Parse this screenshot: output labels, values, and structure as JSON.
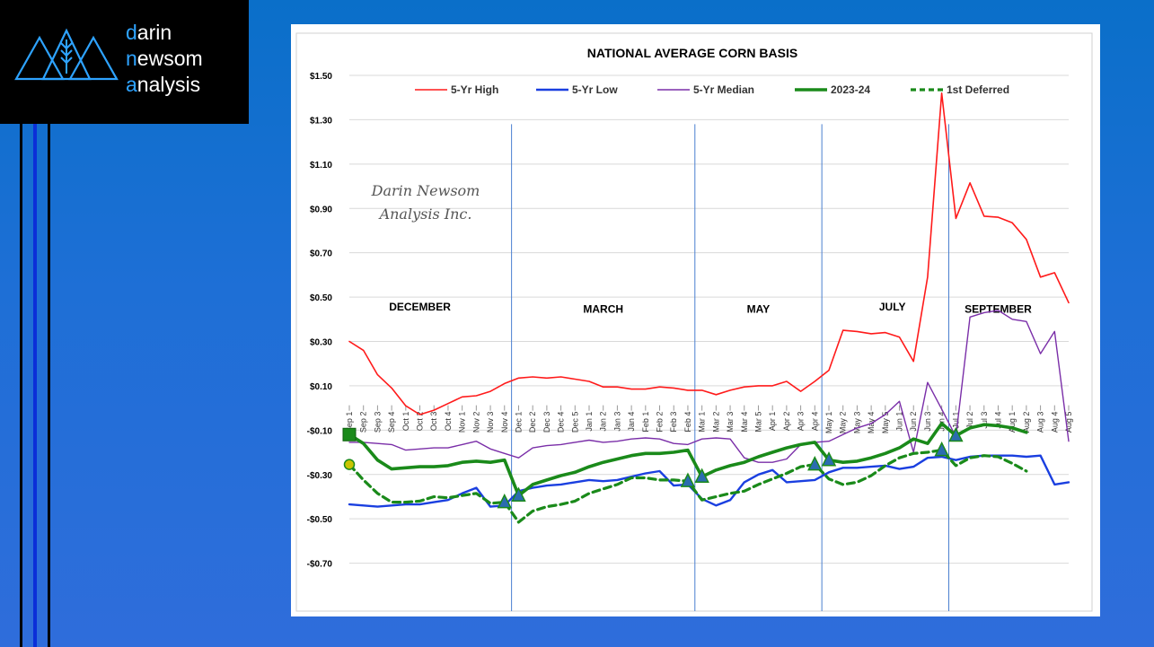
{
  "brand": {
    "line1_a": "d",
    "line1_b": "arin",
    "line2_a": "n",
    "line2_b": "ewsom",
    "line3_a": "a",
    "line3_b": "nalysis"
  },
  "watermark": {
    "line1": "Darin Newsom",
    "line2": "Analysis Inc."
  },
  "colors": {
    "high": "#ff1a1a",
    "low": "#1a3fe0",
    "median": "#7a2ea8",
    "current": "#1a8a1a",
    "deferred": "#1a8a1a",
    "marker_fill": "#2b6cb0"
  },
  "chart_data": {
    "type": "line",
    "title": "NATIONAL AVERAGE CORN BASIS",
    "ylim": [
      -0.9,
      1.5
    ],
    "yticks": [
      1.5,
      1.3,
      1.1,
      0.9,
      0.7,
      0.5,
      0.3,
      0.1,
      -0.1,
      -0.3,
      -0.5,
      -0.7
    ],
    "ytick_labels": [
      "$1.50",
      "$1.30",
      "$1.10",
      "$0.90",
      "$0.70",
      "$0.50",
      "$0.30",
      "$0.10",
      "-$0.10",
      "-$0.30",
      "-$0.50",
      "-$0.70"
    ],
    "grid": true,
    "legend_position": "top",
    "x": [
      "Sep 1",
      "Sep 2",
      "Sep 3",
      "Sep 4",
      "Oct 1",
      "Oct 2",
      "Oct 3",
      "Oct 4",
      "Nov 1",
      "Nov 2",
      "Nov 3",
      "Nov 4",
      "Dec 1",
      "Dec 2",
      "Dec 3",
      "Dec 4",
      "Dec 5",
      "Jan 1",
      "Jan 2",
      "Jan 3",
      "Jan 4",
      "Feb 1",
      "Feb 2",
      "Feb 3",
      "Feb 4",
      "Mar 1",
      "Mar 2",
      "Mar 3",
      "Mar 4",
      "Mar 5",
      "Apr 1",
      "Apr 2",
      "Apr 3",
      "Apr 4",
      "May 1",
      "May 2",
      "May 3",
      "May 4",
      "May 5",
      "Jun 1",
      "Jun 2",
      "Jun 3",
      "Jun 4",
      "Jul 1",
      "Jul 2",
      "Jul 3",
      "Jul 4",
      "Aug 1",
      "Aug 2",
      "Aug 3",
      "Aug 4",
      "Aug 5"
    ],
    "series": [
      {
        "name": "5-Yr High",
        "style": "thin",
        "values": [
          0.3,
          0.26,
          0.15,
          0.09,
          0.01,
          -0.03,
          -0.01,
          0.02,
          0.05,
          0.055,
          0.075,
          0.11,
          0.135,
          0.14,
          0.135,
          0.14,
          0.13,
          0.12,
          0.095,
          0.095,
          0.085,
          0.085,
          0.095,
          0.09,
          0.08,
          0.08,
          0.06,
          0.08,
          0.095,
          0.1,
          0.1,
          0.12,
          0.075,
          0.12,
          0.17,
          0.35,
          0.345,
          0.335,
          0.34,
          0.32,
          0.21,
          0.59,
          1.42,
          0.855,
          1.015,
          0.865,
          0.86,
          0.835,
          0.76,
          0.59,
          0.61,
          0.475
        ]
      },
      {
        "name": "5-Yr Low",
        "style": "medium",
        "values": [
          -0.435,
          -0.44,
          -0.445,
          -0.44,
          -0.435,
          -0.435,
          -0.425,
          -0.415,
          -0.385,
          -0.36,
          -0.445,
          -0.44,
          -0.375,
          -0.36,
          -0.35,
          -0.345,
          -0.335,
          -0.325,
          -0.33,
          -0.325,
          -0.31,
          -0.295,
          -0.285,
          -0.35,
          -0.345,
          -0.41,
          -0.44,
          -0.415,
          -0.335,
          -0.3,
          -0.28,
          -0.335,
          -0.33,
          -0.325,
          -0.29,
          -0.27,
          -0.27,
          -0.265,
          -0.26,
          -0.275,
          -0.265,
          -0.225,
          -0.22,
          -0.235,
          -0.22,
          -0.215,
          -0.215,
          -0.215,
          -0.22,
          -0.215,
          -0.345,
          -0.335
        ]
      },
      {
        "name": "5-Yr Median",
        "style": "thin",
        "values": [
          -0.155,
          -0.155,
          -0.16,
          -0.165,
          -0.19,
          -0.185,
          -0.18,
          -0.18,
          -0.165,
          -0.15,
          -0.185,
          -0.205,
          -0.225,
          -0.18,
          -0.17,
          -0.165,
          -0.155,
          -0.145,
          -0.155,
          -0.15,
          -0.14,
          -0.135,
          -0.14,
          -0.16,
          -0.165,
          -0.14,
          -0.135,
          -0.14,
          -0.225,
          -0.245,
          -0.245,
          -0.23,
          -0.165,
          -0.155,
          -0.15,
          -0.12,
          -0.09,
          -0.07,
          -0.03,
          0.03,
          -0.2,
          0.115,
          -0.005,
          -0.13,
          0.41,
          0.43,
          0.44,
          0.4,
          0.39,
          0.245,
          0.345,
          -0.15
        ]
      },
      {
        "name": "2023-24",
        "style": "thick",
        "values": [
          -0.12,
          -0.16,
          -0.235,
          -0.275,
          -0.27,
          -0.265,
          -0.265,
          -0.26,
          -0.245,
          -0.24,
          -0.245,
          -0.235,
          -0.395,
          -0.345,
          -0.325,
          -0.305,
          -0.29,
          -0.265,
          -0.245,
          -0.23,
          -0.215,
          -0.205,
          -0.205,
          -0.2,
          -0.19,
          -0.31,
          -0.28,
          -0.26,
          -0.245,
          -0.22,
          -0.2,
          -0.18,
          -0.165,
          -0.155,
          -0.235,
          -0.245,
          -0.24,
          -0.225,
          -0.205,
          -0.18,
          -0.14,
          -0.16,
          -0.07,
          -0.125,
          -0.09,
          -0.075,
          -0.08,
          -0.09,
          -0.11,
          null,
          null,
          null
        ]
      },
      {
        "name": "1st Deferred",
        "style": "dashed",
        "values": [
          -0.255,
          -0.325,
          -0.385,
          -0.425,
          -0.425,
          -0.42,
          -0.4,
          -0.405,
          -0.395,
          -0.385,
          -0.43,
          -0.425,
          -0.515,
          -0.465,
          -0.445,
          -0.435,
          -0.42,
          -0.385,
          -0.365,
          -0.345,
          -0.315,
          -0.315,
          -0.325,
          -0.325,
          -0.33,
          -0.415,
          -0.4,
          -0.385,
          -0.375,
          -0.345,
          -0.32,
          -0.295,
          -0.265,
          -0.255,
          -0.32,
          -0.345,
          -0.335,
          -0.305,
          -0.26,
          -0.225,
          -0.205,
          -0.2,
          -0.19,
          -0.26,
          -0.225,
          -0.215,
          -0.22,
          -0.25,
          -0.285,
          null,
          null,
          null
        ]
      }
    ],
    "contract_markers": [
      {
        "series": "2023-24",
        "shape": "square",
        "index": 0
      },
      {
        "series": "1st Deferred",
        "shape": "circle",
        "index": 0
      },
      {
        "series": "1st Deferred",
        "shape": "triangle",
        "index": 11
      },
      {
        "series": "2023-24",
        "shape": "triangle",
        "index": 12
      },
      {
        "series": "1st Deferred",
        "shape": "triangle",
        "index": 24
      },
      {
        "series": "2023-24",
        "shape": "triangle",
        "index": 25
      },
      {
        "series": "1st Deferred",
        "shape": "triangle",
        "index": 33
      },
      {
        "series": "2023-24",
        "shape": "triangle",
        "index": 34
      },
      {
        "series": "1st Deferred",
        "shape": "triangle",
        "index": 42
      },
      {
        "series": "2023-24",
        "shape": "triangle",
        "index": 43
      }
    ],
    "contract_dividers": [
      11.5,
      24.5,
      33.5,
      42.5
    ],
    "annotations": [
      {
        "text": "DECEMBER",
        "x_index": 5,
        "y": 0.44
      },
      {
        "text": "MARCH",
        "x_index": 18,
        "y": 0.43
      },
      {
        "text": "MAY",
        "x_index": 29,
        "y": 0.43
      },
      {
        "text": "JULY",
        "x_index": 38.5,
        "y": 0.44
      },
      {
        "text": "SEPTEMBER",
        "x_index": 46,
        "y": 0.43
      }
    ]
  }
}
